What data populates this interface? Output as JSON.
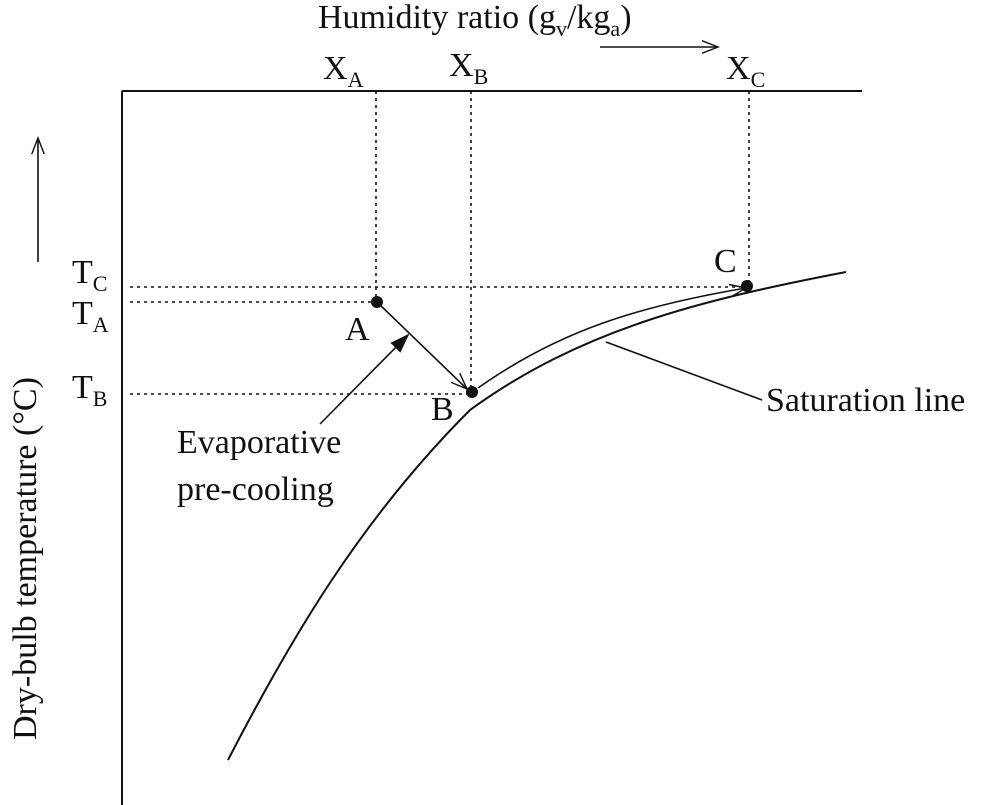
{
  "x_axis": {
    "label_main": "Humidity ratio (g",
    "label_sub1": "v",
    "label_mid": "/kg",
    "label_sub2": "a",
    "label_end": ")"
  },
  "y_axis": {
    "label": "Dry-bulb temperature (°C)"
  },
  "x_ticks": [
    {
      "main": "X",
      "sub": "A"
    },
    {
      "main": "X",
      "sub": "B"
    },
    {
      "main": "X",
      "sub": "C"
    }
  ],
  "y_ticks": [
    {
      "main": "T",
      "sub": "C"
    },
    {
      "main": "T",
      "sub": "A"
    },
    {
      "main": "T",
      "sub": "B"
    }
  ],
  "points": {
    "a": "A",
    "b": "B",
    "c": "C"
  },
  "annotations": {
    "process_line1": "Evaporative",
    "process_line2": "pre-cooling",
    "saturation": "Saturation line"
  }
}
